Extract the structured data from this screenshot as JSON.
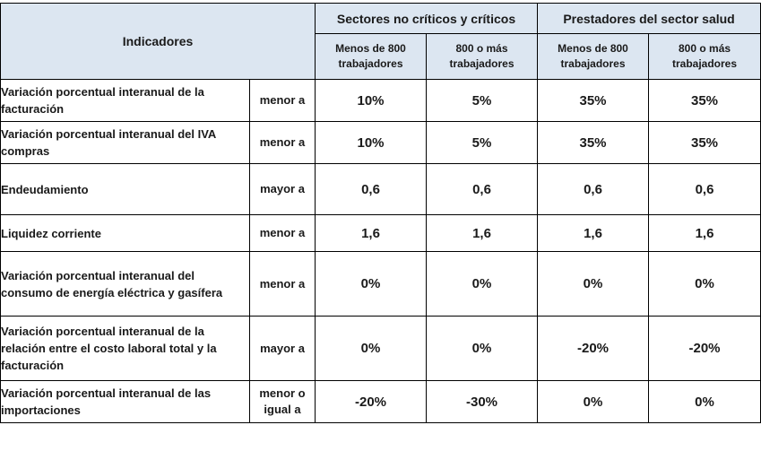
{
  "header": {
    "indicadores": "Indicadores",
    "groups": [
      "Sectores no críticos y críticos",
      "Prestadores del sector salud"
    ],
    "subcolumns": [
      "Menos de 800 trabajadores",
      "800 o más trabajadores",
      "Menos de 800 trabajadores",
      "800 o más trabajadores"
    ]
  },
  "rows": [
    {
      "indicator": "Variación porcentual interanual de la facturación",
      "comparator": "menor a",
      "values": [
        "10%",
        "5%",
        "35%",
        "35%"
      ]
    },
    {
      "indicator": "Variación porcentual interanual del IVA compras",
      "comparator": "menor a",
      "values": [
        "10%",
        "5%",
        "35%",
        "35%"
      ]
    },
    {
      "indicator": "Endeudamiento",
      "comparator": "mayor a",
      "values": [
        "0,6",
        "0,6",
        "0,6",
        "0,6"
      ]
    },
    {
      "indicator": "Liquidez corriente",
      "comparator": "menor a",
      "values": [
        "1,6",
        "1,6",
        "1,6",
        "1,6"
      ]
    },
    {
      "indicator": "Variación porcentual interanual del consumo de energía eléctrica y gasífera",
      "comparator": "menor a",
      "values": [
        "0%",
        "0%",
        "0%",
        "0%"
      ]
    },
    {
      "indicator": "Variación porcentual interanual de la relación entre el costo laboral total y la facturación",
      "comparator": "mayor a",
      "values": [
        "0%",
        "0%",
        "-20%",
        "-20%"
      ]
    },
    {
      "indicator": "Variación porcentual interanual de las importaciones",
      "comparator": "menor o igual a",
      "values": [
        "-20%",
        "-30%",
        "0%",
        "0%"
      ]
    }
  ]
}
